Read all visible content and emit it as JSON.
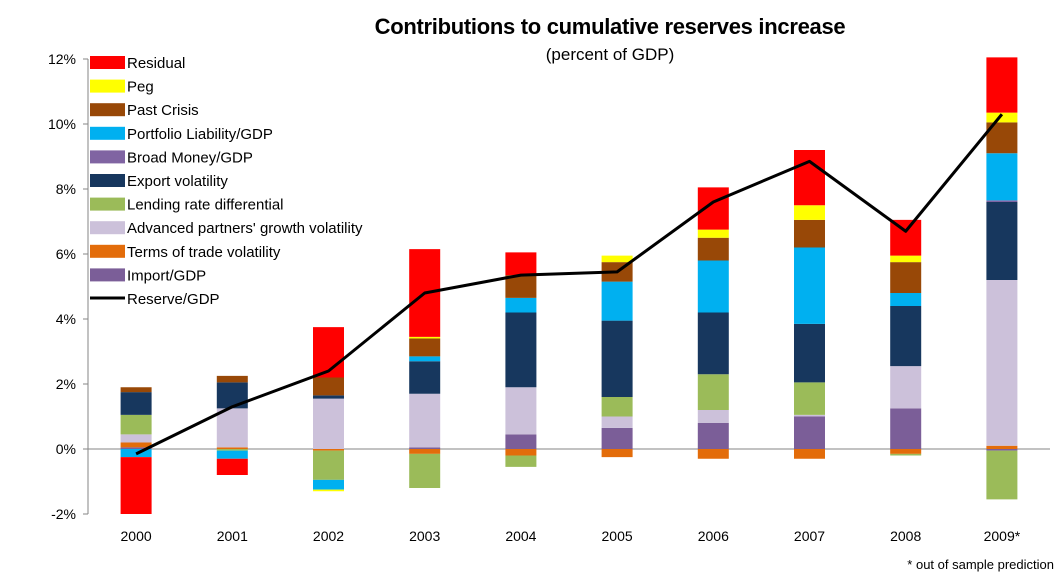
{
  "chart_data": {
    "type": "bar",
    "stacked": true,
    "title": "Contributions to cumulative reserves increase",
    "subtitle": "(percent of GDP)",
    "footnote": "* out of sample prediction",
    "categories": [
      "2000",
      "2001",
      "2002",
      "2003",
      "2004",
      "2005",
      "2006",
      "2007",
      "2008",
      "2009*"
    ],
    "ylim": [
      -2,
      12
    ],
    "yticks": [
      -2,
      0,
      2,
      4,
      6,
      8,
      10,
      12
    ],
    "ytick_labels": [
      "-2%",
      "0%",
      "2%",
      "4%",
      "6%",
      "8%",
      "10%",
      "12%"
    ],
    "legend_position": "top-left",
    "series": [
      {
        "name": "Import/GDP",
        "color": "#7B5E98",
        "values": [
          0.05,
          0.0,
          0.0,
          0.05,
          0.45,
          0.65,
          0.8,
          1.0,
          1.25,
          -0.05
        ]
      },
      {
        "name": "Terms of trade volatility",
        "color": "#E36C0A",
        "values": [
          0.15,
          0.05,
          -0.05,
          -0.15,
          -0.2,
          -0.25,
          -0.3,
          -0.3,
          -0.15,
          0.1
        ]
      },
      {
        "name": "Advanced partners' growth volatility",
        "color": "#CCC1DA",
        "values": [
          0.25,
          1.2,
          1.55,
          1.65,
          1.45,
          0.35,
          0.4,
          0.05,
          1.3,
          5.1
        ]
      },
      {
        "name": "Lending rate differential",
        "color": "#9BBB59",
        "values": [
          0.6,
          -0.05,
          -0.9,
          -1.05,
          -0.35,
          0.6,
          1.1,
          1.0,
          -0.05,
          -1.5
        ]
      },
      {
        "name": "Export volatility",
        "color": "#17375E",
        "values": [
          0.7,
          0.8,
          0.1,
          1.0,
          2.3,
          2.35,
          1.9,
          1.8,
          1.85,
          2.4
        ]
      },
      {
        "name": "Broad Money/GDP",
        "color": "#8064A2",
        "values": [
          0.0,
          0.0,
          0.0,
          0.0,
          0.0,
          0.0,
          0.0,
          0.0,
          0.0,
          0.05
        ]
      },
      {
        "name": "Portfolio Liability/GDP",
        "color": "#00B0F0",
        "values": [
          -0.25,
          -0.25,
          -0.3,
          0.15,
          0.45,
          1.2,
          1.6,
          2.35,
          0.4,
          1.45
        ]
      },
      {
        "name": "Past Crisis",
        "color": "#984807",
        "values": [
          0.15,
          0.2,
          0.55,
          0.55,
          0.7,
          0.6,
          0.7,
          0.85,
          0.95,
          0.95
        ]
      },
      {
        "name": "Peg",
        "color": "#FFFF00",
        "values": [
          0.0,
          0.0,
          -0.05,
          0.05,
          0.0,
          0.2,
          0.25,
          0.45,
          0.2,
          0.3
        ]
      },
      {
        "name": "Residual",
        "color": "#FF0000",
        "values": [
          -1.75,
          -0.5,
          1.55,
          2.7,
          0.7,
          0.0,
          1.3,
          1.7,
          1.1,
          1.7
        ]
      }
    ],
    "line_series": {
      "name": "Reserve/GDP",
      "color": "#000000",
      "values": [
        -0.15,
        1.3,
        2.4,
        4.8,
        5.35,
        5.45,
        7.6,
        8.85,
        6.7,
        10.3
      ]
    },
    "legend_order": [
      "Residual",
      "Peg",
      "Past Crisis",
      "Portfolio Liability/GDP",
      "Broad Money/GDP",
      "Export volatility",
      "Lending rate differential",
      "Advanced partners' growth volatility",
      "Terms of trade volatility",
      "Import/GDP",
      "Reserve/GDP"
    ]
  }
}
